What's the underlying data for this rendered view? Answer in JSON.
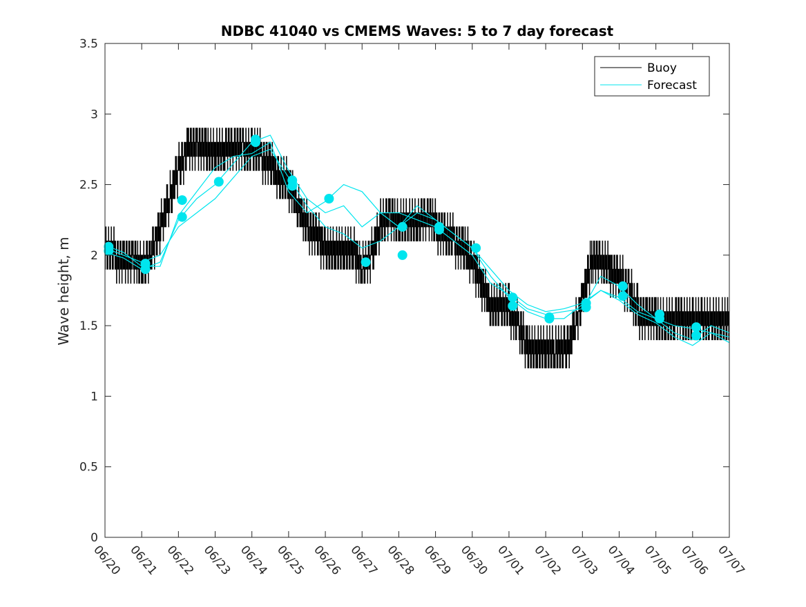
{
  "chart_data": {
    "type": "line",
    "title": "NDBC 41040 vs CMEMS Waves: 5 to 7 day forecast",
    "xlabel": "",
    "ylabel": "Wave height, m",
    "x_unit": "date (MM/DD)",
    "xlim": [
      "06/20",
      "07/07"
    ],
    "ylim": [
      0,
      3.5
    ],
    "grid": false,
    "legend_position": "top-right",
    "x_ticks": [
      "06/20",
      "06/21",
      "06/22",
      "06/23",
      "06/24",
      "06/25",
      "06/26",
      "06/27",
      "06/28",
      "06/29",
      "06/30",
      "07/01",
      "07/02",
      "07/03",
      "07/04",
      "07/05",
      "07/06",
      "07/07"
    ],
    "y_ticks": [
      "0",
      "0.5",
      "1",
      "1.5",
      "2",
      "2.5",
      "3",
      "3.5"
    ],
    "colors": {
      "buoy": "#000000",
      "forecast": "#00e5ee"
    },
    "legend": [
      "Buoy",
      "Forecast"
    ],
    "buoy_series": {
      "name": "Buoy",
      "x_days_from_0620": [
        0,
        0.25,
        0.5,
        0.75,
        1,
        1.25,
        1.5,
        1.75,
        2,
        2.25,
        2.5,
        2.75,
        3,
        3.25,
        3.5,
        3.75,
        4,
        4.25,
        4.5,
        4.75,
        5,
        5.25,
        5.5,
        5.75,
        6,
        6.25,
        6.5,
        6.75,
        7,
        7.25,
        7.5,
        7.75,
        8,
        8.25,
        8.5,
        8.75,
        9,
        9.25,
        9.5,
        9.75,
        10,
        10.25,
        10.5,
        10.75,
        11,
        11.25,
        11.5,
        11.75,
        12,
        12.25,
        12.5,
        12.75,
        13,
        13.25,
        13.5,
        13.75,
        14,
        14.25,
        14.5,
        14.75,
        15,
        15.25,
        15.5,
        15.75,
        16,
        16.25,
        16.5,
        16.75,
        17
      ],
      "values": [
        2.0,
        2.0,
        1.95,
        2.0,
        1.9,
        2.0,
        2.2,
        2.4,
        2.6,
        2.75,
        2.8,
        2.75,
        2.7,
        2.75,
        2.8,
        2.75,
        2.7,
        2.7,
        2.65,
        2.55,
        2.5,
        2.35,
        2.2,
        2.15,
        2.05,
        2.0,
        2.0,
        2.05,
        1.9,
        2.0,
        2.2,
        2.3,
        2.2,
        2.25,
        2.2,
        2.3,
        2.2,
        2.15,
        2.1,
        2.05,
        1.95,
        1.8,
        1.65,
        1.6,
        1.6,
        1.5,
        1.35,
        1.3,
        1.3,
        1.35,
        1.3,
        1.45,
        1.7,
        1.95,
        1.95,
        1.9,
        1.85,
        1.75,
        1.6,
        1.55,
        1.55,
        1.5,
        1.55,
        1.55,
        1.5,
        1.5,
        1.5,
        1.5,
        1.5
      ]
    },
    "forecast_markers": {
      "x": [
        "06/20",
        "06/20",
        "06/21",
        "06/21",
        "06/22",
        "06/22",
        "06/23",
        "06/24",
        "06/24",
        "06/25",
        "06/25",
        "06/26",
        "06/27",
        "06/28",
        "06/28",
        "06/29",
        "06/29",
        "06/30",
        "07/01",
        "07/01",
        "07/02",
        "07/02",
        "07/03",
        "07/03",
        "07/04",
        "07/04",
        "07/05",
        "07/05",
        "07/06",
        "07/06"
      ],
      "values": [
        2.06,
        2.03,
        1.94,
        1.9,
        2.39,
        2.27,
        2.52,
        2.82,
        2.8,
        2.53,
        2.49,
        2.4,
        1.95,
        2.2,
        2.0,
        2.2,
        2.18,
        2.05,
        1.7,
        1.64,
        1.56,
        1.55,
        1.66,
        1.63,
        1.78,
        1.71,
        1.58,
        1.55,
        1.49,
        1.43
      ]
    },
    "forecast_series": [
      {
        "x_days_from_0620": [
          0,
          0.5,
          1,
          1.5,
          2,
          2.5,
          3,
          3.5,
          4,
          4.5,
          5,
          5.5,
          6,
          6.5,
          7,
          7.5,
          8,
          8.5,
          9,
          9.5,
          10,
          10.5,
          11,
          11.5,
          12,
          12.5,
          13,
          13.5,
          14,
          14.5,
          15,
          15.5,
          16,
          16.5,
          17
        ],
        "values": [
          2.05,
          2.0,
          1.95,
          2.0,
          2.2,
          2.3,
          2.4,
          2.55,
          2.7,
          2.75,
          2.55,
          2.35,
          2.2,
          2.15,
          2.05,
          2.1,
          2.2,
          2.3,
          2.25,
          2.15,
          2.05,
          1.85,
          1.7,
          1.6,
          1.55,
          1.55,
          1.65,
          1.75,
          1.7,
          1.6,
          1.55,
          1.5,
          1.48,
          1.45,
          1.42
        ]
      },
      {
        "x_days_from_0620": [
          0,
          0.5,
          1,
          1.5,
          2,
          2.5,
          3,
          3.5,
          4,
          4.5,
          5,
          5.5,
          6,
          6.5,
          7,
          7.5,
          8,
          8.5,
          9,
          9.5,
          10,
          10.5,
          11,
          11.5,
          12,
          12.5,
          13,
          13.5,
          14,
          14.5,
          15,
          15.5,
          16,
          16.5,
          17
        ],
        "values": [
          2.02,
          1.98,
          1.9,
          1.95,
          2.25,
          2.4,
          2.5,
          2.65,
          2.8,
          2.85,
          2.6,
          2.4,
          2.3,
          2.35,
          2.2,
          2.3,
          2.3,
          2.25,
          2.2,
          2.1,
          2.0,
          1.8,
          1.72,
          1.62,
          1.58,
          1.6,
          1.62,
          1.85,
          1.78,
          1.65,
          1.55,
          1.45,
          1.4,
          1.5,
          1.45
        ]
      },
      {
        "x_days_from_0620": [
          0,
          0.5,
          1,
          1.5,
          2,
          2.5,
          3,
          3.5,
          4,
          4.5,
          5,
          5.5,
          6,
          6.5,
          7,
          7.5,
          8,
          8.5,
          9,
          9.5,
          10,
          10.5,
          11,
          11.5,
          12,
          12.5,
          13,
          13.5,
          14,
          14.5,
          15,
          15.5,
          16,
          16.5,
          17
        ],
        "values": [
          2.07,
          2.02,
          1.92,
          1.92,
          2.28,
          2.45,
          2.62,
          2.7,
          2.72,
          2.8,
          2.45,
          2.3,
          2.38,
          2.5,
          2.45,
          2.3,
          2.2,
          2.35,
          2.25,
          2.15,
          2.05,
          1.9,
          1.75,
          1.65,
          1.6,
          1.62,
          1.66,
          1.75,
          1.68,
          1.58,
          1.52,
          1.42,
          1.36,
          1.45,
          1.38
        ]
      }
    ]
  }
}
